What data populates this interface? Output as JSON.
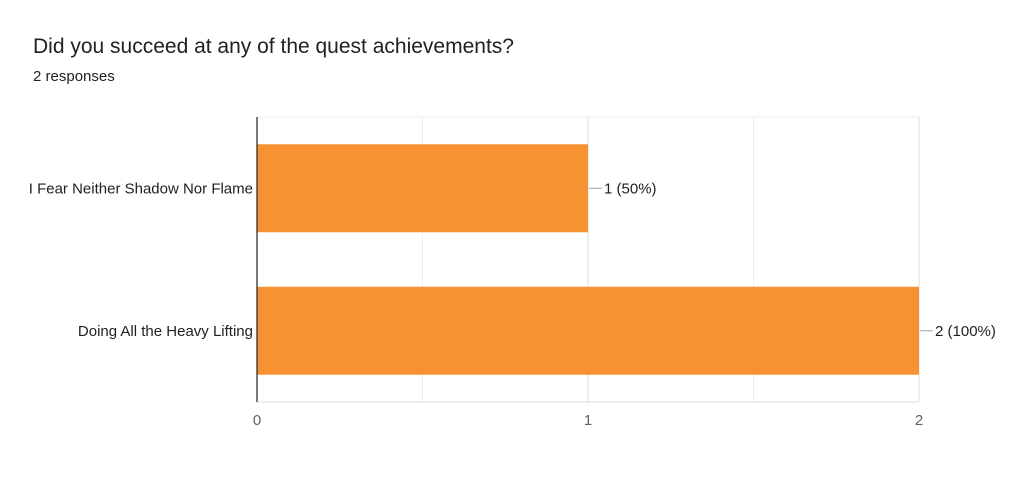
{
  "header": {
    "question": "Did you succeed at any of the quest achievements?",
    "responses": "2 responses"
  },
  "chart_data": {
    "type": "bar",
    "orientation": "horizontal",
    "categories": [
      "I Fear Neither Shadow Nor Flame",
      "Doing All the Heavy Lifting"
    ],
    "values": [
      1,
      2
    ],
    "value_labels": [
      "1 (50%)",
      "2 (100%)"
    ],
    "xlim": [
      0,
      2
    ],
    "x_ticks": [
      "0",
      "1",
      "2"
    ],
    "grid": true,
    "bar_color": "#f79232",
    "title": "",
    "xlabel": "",
    "ylabel": ""
  }
}
